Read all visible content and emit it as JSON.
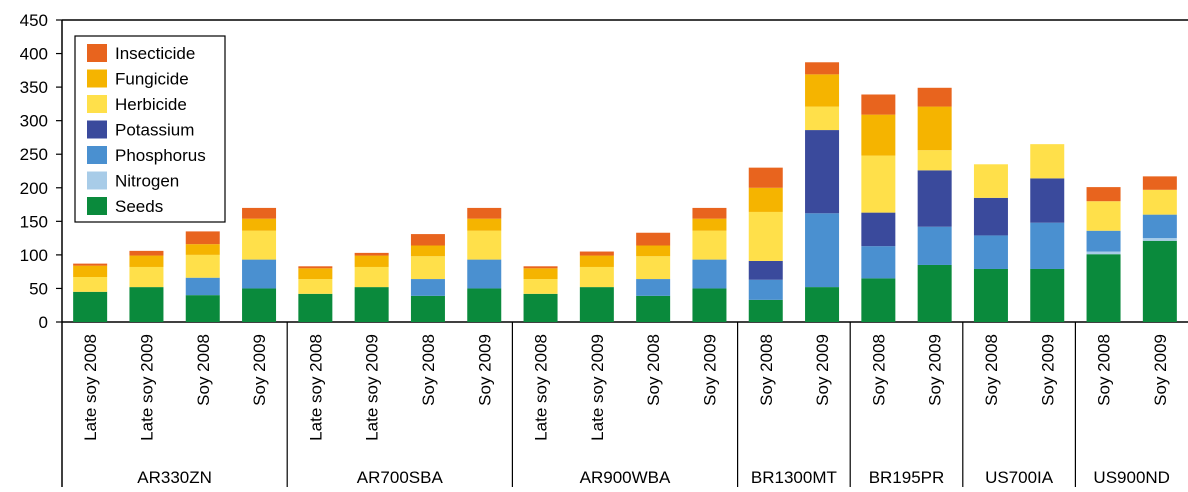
{
  "chart_data": {
    "type": "bar",
    "stacked": true,
    "title": "",
    "xlabel": "",
    "ylabel": "",
    "ylim": [
      0,
      450
    ],
    "yticks": [
      0,
      50,
      100,
      150,
      200,
      250,
      300,
      350,
      400,
      450
    ],
    "legend_position": "top-left",
    "categories": [
      "Late soy 2008",
      "Late soy 2009",
      "Soy 2008",
      "Soy 2009",
      "Late soy 2008",
      "Late soy 2009",
      "Soy 2008",
      "Soy 2009",
      "Late soy 2008",
      "Late soy 2009",
      "Soy 2008",
      "Soy 2009",
      "Soy 2008",
      "Soy 2009",
      "Soy 2008",
      "Soy 2009",
      "Soy 2008",
      "Soy 2009",
      "Soy 2008",
      "Soy 2009"
    ],
    "groups": [
      {
        "label": "AR330ZN",
        "count": 4
      },
      {
        "label": "AR700SBA",
        "count": 4
      },
      {
        "label": "AR900WBA",
        "count": 4
      },
      {
        "label": "BR1300MT",
        "count": 2
      },
      {
        "label": "BR195PR",
        "count": 2
      },
      {
        "label": "US700IA",
        "count": 2
      },
      {
        "label": "US900ND",
        "count": 2
      }
    ],
    "series": [
      {
        "name": "Seeds",
        "color": "#0a8a3c",
        "values": [
          45,
          52,
          40,
          50,
          42,
          52,
          39,
          50,
          42,
          52,
          39,
          50,
          33,
          52,
          65,
          85,
          79,
          79,
          101,
          121
        ]
      },
      {
        "name": "Nitrogen",
        "color": "#a8cce8",
        "values": [
          0,
          0,
          0,
          0,
          0,
          0,
          0,
          0,
          0,
          0,
          0,
          0,
          0,
          0,
          0,
          0,
          0,
          0,
          4,
          4
        ]
      },
      {
        "name": "Phosphorus",
        "color": "#4a90d0",
        "values": [
          0,
          0,
          26,
          43,
          0,
          0,
          25,
          43,
          0,
          0,
          25,
          43,
          30,
          110,
          48,
          57,
          50,
          69,
          31,
          35
        ]
      },
      {
        "name": "Potassium",
        "color": "#3a4a9c",
        "values": [
          0,
          0,
          0,
          0,
          0,
          0,
          0,
          0,
          0,
          0,
          0,
          0,
          28,
          124,
          50,
          84,
          56,
          66,
          0,
          0
        ]
      },
      {
        "name": "Herbicide",
        "color": "#ffe04a",
        "values": [
          22,
          30,
          34,
          43,
          22,
          30,
          34,
          43,
          22,
          30,
          34,
          43,
          73,
          35,
          85,
          30,
          50,
          51,
          44,
          37
        ]
      },
      {
        "name": "Fungicide",
        "color": "#f5b400",
        "values": [
          17,
          17,
          16,
          18,
          16,
          17,
          16,
          18,
          16,
          17,
          16,
          18,
          36,
          48,
          61,
          65,
          0,
          0,
          0,
          0
        ]
      },
      {
        "name": "Insecticide",
        "color": "#e8641e",
        "values": [
          3,
          7,
          19,
          16,
          3,
          4,
          17,
          16,
          3,
          6,
          19,
          16,
          30,
          18,
          30,
          28,
          0,
          0,
          21,
          20
        ]
      }
    ]
  }
}
